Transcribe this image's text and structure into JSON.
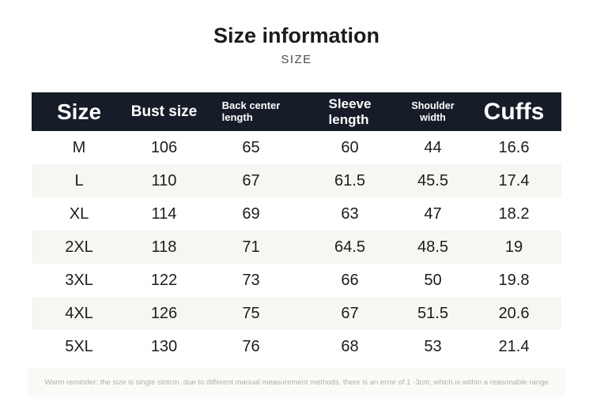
{
  "page": {
    "background": "#ffffff"
  },
  "header": {
    "title": "Size information",
    "subtitle": "SIZE"
  },
  "chart_data": {
    "type": "table",
    "title": "Size information",
    "subtitle": "SIZE",
    "columns": [
      "Size",
      "Bust size",
      "Back center length",
      "Sleeve length",
      "Shoulder width",
      "Cuffs"
    ],
    "column_labels": [
      "Size",
      "Bust size",
      "Back center\nlength",
      "Sleeve\nlength",
      "Shoulder\nwidth",
      "Cuffs"
    ],
    "rows": [
      [
        "M",
        "106",
        "65",
        "60",
        "44",
        "16.6"
      ],
      [
        "L",
        "110",
        "67",
        "61.5",
        "45.5",
        "17.4"
      ],
      [
        "XL",
        "114",
        "69",
        "63",
        "47",
        "18.2"
      ],
      [
        "2XL",
        "118",
        "71",
        "64.5",
        "48.5",
        "19"
      ],
      [
        "3XL",
        "122",
        "73",
        "66",
        "50",
        "19.8"
      ],
      [
        "4XL",
        "126",
        "75",
        "67",
        "51.5",
        "20.6"
      ],
      [
        "5XL",
        "130",
        "76",
        "68",
        "53",
        "21.4"
      ]
    ]
  },
  "colors": {
    "table_header_bg": "#161d29",
    "table_header_text": "#ffffff",
    "row_alt_bg": "#f7f6f2",
    "note_bg": "#fbfaf7",
    "note_text": "#b2b0ab",
    "cell_text": "#1c1c1c"
  },
  "footer": {
    "note": "Warm reminder: the size is single slotcm. due to different manual measurement methods, there is an error of 1 -3cm, which is within a reasonable range"
  }
}
